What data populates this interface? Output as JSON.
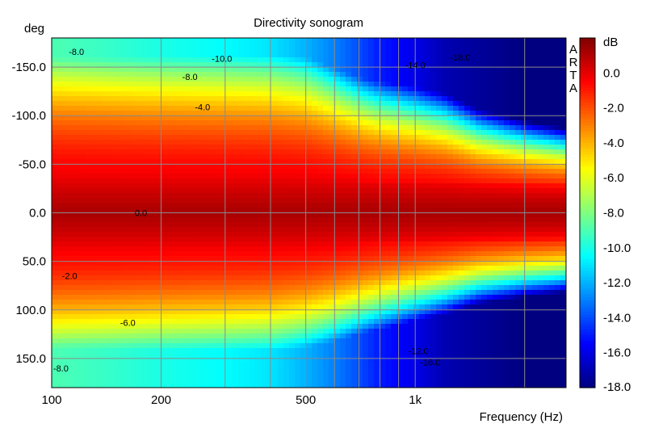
{
  "chart_data": {
    "type": "heatmap",
    "title": "Directivity sonogram",
    "xlabel": "Frequency (Hz)",
    "ylabel": "deg",
    "x_scale": "log",
    "xlim": [
      100,
      2600
    ],
    "ylim": [
      -180,
      180
    ],
    "y_inverted": true,
    "x_ticks": [
      {
        "v": 100,
        "label": "100"
      },
      {
        "v": 200,
        "label": "200"
      },
      {
        "v": 500,
        "label": "500"
      },
      {
        "v": 1000,
        "label": "1k"
      }
    ],
    "x_grid": [
      100,
      200,
      300,
      400,
      500,
      600,
      700,
      800,
      900,
      1000,
      2000
    ],
    "y_ticks": [
      {
        "v": -150,
        "label": "-150.0"
      },
      {
        "v": -100,
        "label": "-100.0"
      },
      {
        "v": -50,
        "label": "-50.0"
      },
      {
        "v": 0,
        "label": "0.0"
      },
      {
        "v": 50,
        "label": "50.0"
      },
      {
        "v": 100,
        "label": "100.0"
      },
      {
        "v": 150,
        "label": "150.0"
      }
    ],
    "colorbar": {
      "label": "dB",
      "min": -18,
      "max": 2,
      "ticks": [
        "0.0",
        "-2.0",
        "-4.0",
        "-6.0",
        "-8.0",
        "-10.0",
        "-12.0",
        "-14.0",
        "-16.0",
        "-18.0"
      ],
      "tick_values": [
        0,
        -2,
        -4,
        -6,
        -8,
        -10,
        -12,
        -14,
        -16,
        -18
      ]
    },
    "watermark": "ARTA",
    "contour_labels": [
      {
        "text": "-8.0",
        "freq": 117,
        "deg": -166
      },
      {
        "text": "-10.0",
        "freq": 294,
        "deg": -159
      },
      {
        "text": "-8.0",
        "freq": 240,
        "deg": -140
      },
      {
        "text": "-4.0",
        "freq": 260,
        "deg": -109
      },
      {
        "text": "-14.0",
        "freq": 1000,
        "deg": -152
      },
      {
        "text": "-18.0",
        "freq": 1330,
        "deg": -160
      },
      {
        "text": "0.0",
        "freq": 176,
        "deg": 0
      },
      {
        "text": "-2.0",
        "freq": 112,
        "deg": 65
      },
      {
        "text": "-6.0",
        "freq": 162,
        "deg": 113
      },
      {
        "text": "-12.0",
        "freq": 1020,
        "deg": 142
      },
      {
        "text": "-16.0",
        "freq": 1100,
        "deg": 154
      },
      {
        "text": "-8.0",
        "freq": 106,
        "deg": 160
      }
    ],
    "band_model": {
      "description": "level(dB) vs angle: 0 dB at axis, falling to edge values; half-width (deg at -6 dB) by frequency",
      "freq": [
        100,
        150,
        200,
        300,
        400,
        500,
        600,
        700,
        800,
        1000,
        1200,
        1500,
        2000,
        2600
      ],
      "halfwidth_neg": [
        135,
        132,
        130,
        128,
        126,
        120,
        108,
        98,
        92,
        86,
        80,
        68,
        60,
        55
      ],
      "halfwidth_pos": [
        118,
        116,
        114,
        112,
        110,
        104,
        96,
        88,
        82,
        74,
        68,
        60,
        55,
        52
      ],
      "floor_db": [
        -9,
        -9.5,
        -10,
        -10.5,
        -11,
        -12,
        -13,
        -14,
        -15,
        -16,
        -17,
        -17.5,
        -18,
        -18
      ]
    }
  }
}
